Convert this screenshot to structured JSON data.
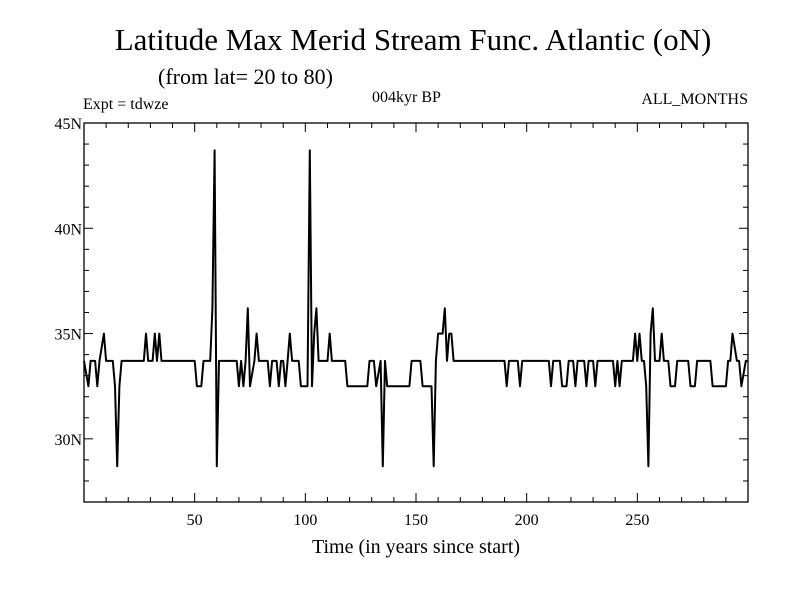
{
  "chart_data": {
    "type": "line",
    "title": "Latitude Max Merid Stream Func. Atlantic (oN)",
    "subtitle": "(from lat= 20 to 80)",
    "experiment": "Expt = tdwze",
    "period": "004kyr BP",
    "months": "ALL_MONTHS",
    "xlabel": "Time (in years since start)",
    "ylabel": "",
    "xlim": [
      0,
      300
    ],
    "ylim": [
      27,
      45
    ],
    "x_ticks": [
      50,
      100,
      150,
      200,
      250
    ],
    "x_tick_labels": [
      "50",
      "100",
      "150",
      "200",
      "250"
    ],
    "y_ticks": [
      30,
      35,
      40,
      45
    ],
    "y_tick_labels": [
      "30N",
      "35N",
      "40N",
      "45N"
    ],
    "grid": false,
    "series": [
      {
        "values": [
          [
            0,
            33.7
          ],
          [
            2,
            32.5
          ],
          [
            3,
            33.7
          ],
          [
            5,
            33.7
          ],
          [
            6,
            32.5
          ],
          [
            7,
            33.7
          ],
          [
            9,
            35.0
          ],
          [
            10,
            33.7
          ],
          [
            13,
            33.7
          ],
          [
            14,
            32.5
          ],
          [
            15,
            28.7
          ],
          [
            16,
            32.5
          ],
          [
            17,
            33.7
          ],
          [
            27,
            33.7
          ],
          [
            28,
            35.0
          ],
          [
            29,
            33.7
          ],
          [
            31,
            33.7
          ],
          [
            32,
            35.0
          ],
          [
            33,
            33.7
          ],
          [
            34,
            35.0
          ],
          [
            35,
            33.7
          ],
          [
            50,
            33.7
          ],
          [
            51,
            32.5
          ],
          [
            53,
            32.5
          ],
          [
            54,
            33.7
          ],
          [
            57,
            33.7
          ],
          [
            58,
            36.2
          ],
          [
            59,
            43.7
          ],
          [
            60,
            28.7
          ],
          [
            61,
            33.7
          ],
          [
            69,
            33.7
          ],
          [
            70,
            32.5
          ],
          [
            71,
            33.7
          ],
          [
            72,
            32.5
          ],
          [
            73,
            33.7
          ],
          [
            74,
            36.2
          ],
          [
            75,
            32.5
          ],
          [
            77,
            33.7
          ],
          [
            78,
            35.0
          ],
          [
            79,
            33.7
          ],
          [
            83,
            33.7
          ],
          [
            84,
            32.5
          ],
          [
            85,
            33.7
          ],
          [
            87,
            33.7
          ],
          [
            88,
            32.5
          ],
          [
            89,
            33.7
          ],
          [
            90,
            33.7
          ],
          [
            91,
            32.5
          ],
          [
            92,
            33.7
          ],
          [
            93,
            35.0
          ],
          [
            94,
            33.7
          ],
          [
            97,
            33.7
          ],
          [
            98,
            32.5
          ],
          [
            101,
            32.5
          ],
          [
            102,
            43.7
          ],
          [
            103,
            32.5
          ],
          [
            104,
            35.0
          ],
          [
            105,
            36.2
          ],
          [
            106,
            33.7
          ],
          [
            110,
            33.7
          ],
          [
            111,
            35.0
          ],
          [
            112,
            33.7
          ],
          [
            118,
            33.7
          ],
          [
            119,
            32.5
          ],
          [
            128,
            32.5
          ],
          [
            129,
            33.7
          ],
          [
            131,
            33.7
          ],
          [
            132,
            32.5
          ],
          [
            134,
            33.7
          ],
          [
            135,
            28.7
          ],
          [
            136,
            33.7
          ],
          [
            137,
            32.5
          ],
          [
            147,
            32.5
          ],
          [
            148,
            33.7
          ],
          [
            152,
            33.7
          ],
          [
            153,
            32.5
          ],
          [
            157,
            32.5
          ],
          [
            158,
            28.7
          ],
          [
            159,
            33.7
          ],
          [
            160,
            35.0
          ],
          [
            162,
            35.0
          ],
          [
            163,
            36.2
          ],
          [
            164,
            33.7
          ],
          [
            165,
            35.0
          ],
          [
            166,
            35.0
          ],
          [
            167,
            33.7
          ],
          [
            190,
            33.7
          ],
          [
            191,
            32.5
          ],
          [
            192,
            33.7
          ],
          [
            196,
            33.7
          ],
          [
            197,
            32.5
          ],
          [
            198,
            33.7
          ],
          [
            210,
            33.7
          ],
          [
            211,
            32.5
          ],
          [
            212,
            33.7
          ],
          [
            215,
            33.7
          ],
          [
            216,
            32.5
          ],
          [
            218,
            32.5
          ],
          [
            219,
            33.7
          ],
          [
            221,
            33.7
          ],
          [
            222,
            32.5
          ],
          [
            223,
            33.7
          ],
          [
            226,
            33.7
          ],
          [
            227,
            32.5
          ],
          [
            228,
            33.7
          ],
          [
            230,
            33.7
          ],
          [
            231,
            32.5
          ],
          [
            232,
            33.7
          ],
          [
            239,
            33.7
          ],
          [
            240,
            32.5
          ],
          [
            241,
            33.7
          ],
          [
            242,
            32.5
          ],
          [
            243,
            33.7
          ],
          [
            248,
            33.7
          ],
          [
            249,
            35.0
          ],
          [
            250,
            33.7
          ],
          [
            251,
            35.0
          ],
          [
            252,
            33.7
          ],
          [
            253,
            33.7
          ],
          [
            254,
            32.5
          ],
          [
            255,
            28.7
          ],
          [
            256,
            35.0
          ],
          [
            257,
            36.2
          ],
          [
            258,
            33.7
          ],
          [
            260,
            33.7
          ],
          [
            261,
            35.0
          ],
          [
            262,
            33.7
          ],
          [
            264,
            33.7
          ],
          [
            265,
            32.5
          ],
          [
            267,
            32.5
          ],
          [
            268,
            33.7
          ],
          [
            273,
            33.7
          ],
          [
            274,
            32.5
          ],
          [
            276,
            32.5
          ],
          [
            277,
            33.7
          ],
          [
            283,
            33.7
          ],
          [
            284,
            32.5
          ],
          [
            290,
            32.5
          ],
          [
            291,
            33.7
          ],
          [
            292,
            33.7
          ],
          [
            293,
            35.0
          ],
          [
            295,
            33.7
          ],
          [
            296,
            33.7
          ],
          [
            297,
            32.5
          ],
          [
            299,
            33.7
          ],
          [
            300,
            33.7
          ]
        ]
      }
    ]
  }
}
